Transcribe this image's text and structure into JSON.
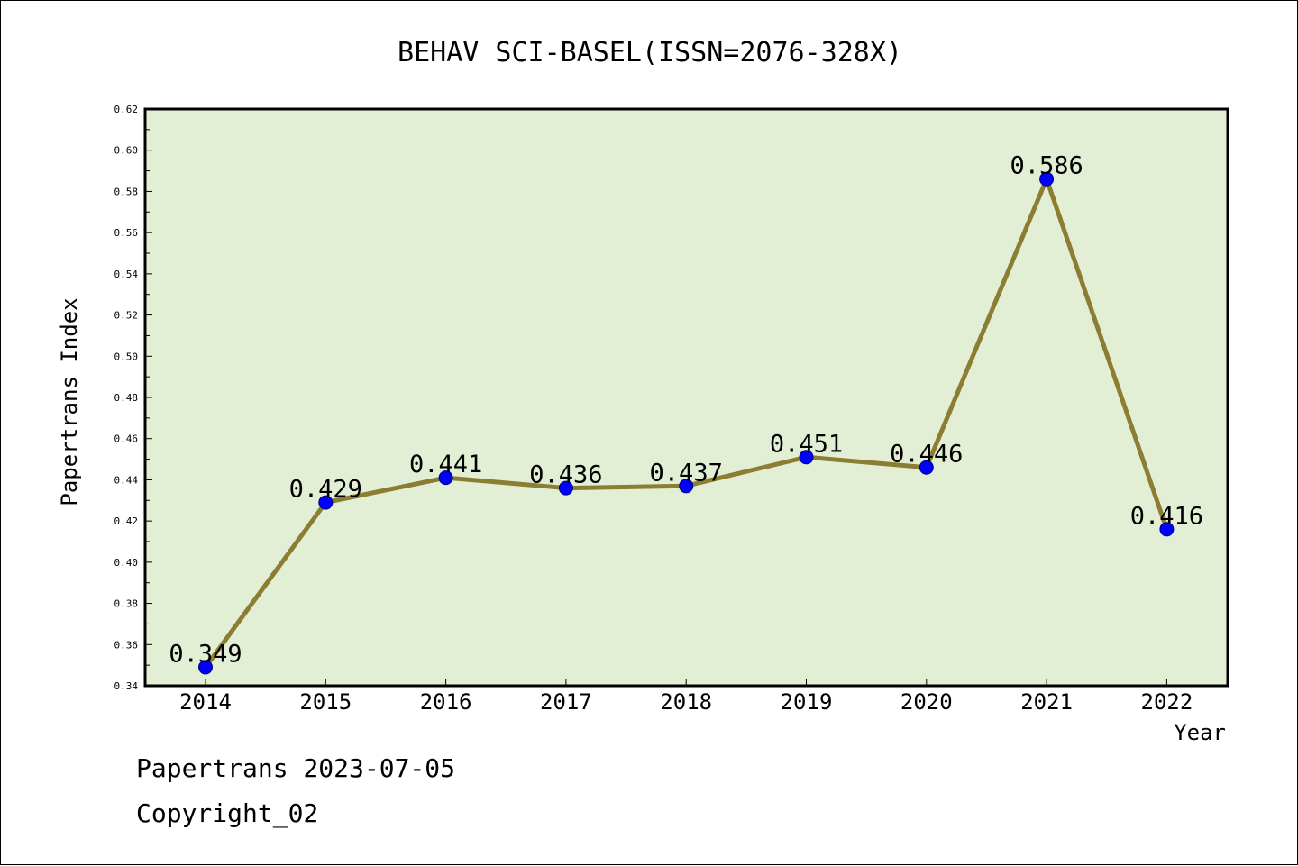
{
  "chart_data": {
    "type": "line",
    "title": "BEHAV SCI-BASEL(ISSN=2076-328X)",
    "xlabel": "Year",
    "ylabel": "Papertrans Index",
    "categories": [
      "2014",
      "2015",
      "2016",
      "2017",
      "2018",
      "2019",
      "2020",
      "2021",
      "2022"
    ],
    "values": [
      0.349,
      0.429,
      0.441,
      0.436,
      0.437,
      0.451,
      0.446,
      0.586,
      0.416
    ],
    "data_labels": [
      "0.349",
      "0.429",
      "0.441",
      "0.436",
      "0.437",
      "0.451",
      "0.446",
      "0.586",
      "0.416"
    ],
    "ylim": [
      0.34,
      0.62
    ],
    "yticks": [
      "0.34",
      "0.36",
      "0.38",
      "0.40",
      "0.42",
      "0.44",
      "0.46",
      "0.48",
      "0.50",
      "0.52",
      "0.54",
      "0.56",
      "0.58",
      "0.60",
      "0.62"
    ],
    "grid": false,
    "legend": "none",
    "colors": {
      "plot_bg": "#e2efd4",
      "line": "#8b7d32",
      "marker": "#0000ff"
    }
  },
  "footer": {
    "source": "Papertrans 2023-07-05",
    "copyright": "Copyright_02"
  }
}
